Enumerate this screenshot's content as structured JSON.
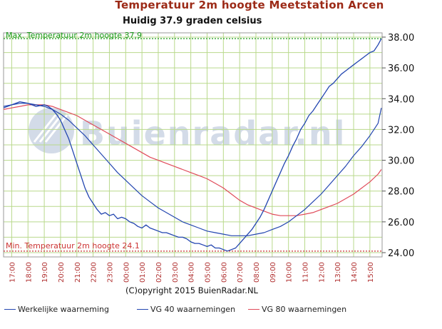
{
  "header": {
    "title": "Temperatuur 2m hoogte Meetstation Arcen",
    "subtitle": "Huidig 37.9 graden celsius"
  },
  "footer": {
    "copyright": "(C)opyright 2015 BuienRadar.NL"
  },
  "colors": {
    "actual": "#2346b0",
    "vg40": "#2346b0",
    "vg80": "#e04b5a",
    "max_line": "#1a9a1a",
    "min_line": "#cc3333",
    "grid": "#b9d98c",
    "watermark": "#d3dbe8",
    "title": "#9c2a17"
  },
  "chart_data": {
    "type": "line",
    "title": "Temperatuur 2m hoogte Meetstation Arcen",
    "subtitle": "Huidig 37.9 graden celsius",
    "watermark": "Buienradar.nl",
    "x_tick_labels": [
      "17:00",
      "18:00",
      "19:00",
      "20:00",
      "21:00",
      "22:00",
      "23:00",
      "00:00",
      "01:00",
      "02:00",
      "03:00",
      "04:00",
      "05:00",
      "06:00",
      "07:00",
      "08:00",
      "09:00",
      "10:00",
      "11:00",
      "12:00",
      "13:00",
      "14:00",
      "15:00"
    ],
    "xlim": [
      16.5,
      39.75
    ],
    "ylim": [
      24,
      38
    ],
    "y_ticks": [
      24,
      26,
      28,
      30,
      32,
      34,
      36,
      38
    ],
    "y_tick_labels": [
      "24.00",
      "26.00",
      "28.00",
      "30.00",
      "32.00",
      "34.00",
      "36.00",
      "38.00"
    ],
    "grid": true,
    "legend_position": "bottom",
    "reference_lines": [
      {
        "label": "Max. Temperatuur 2m hoogte 37.9",
        "value": 37.9,
        "color": "#1a9a1a"
      },
      {
        "label": "Min. Temperatuur 2m hoogte 24.1",
        "value": 24.1,
        "color": "#cc3333"
      }
    ],
    "series": [
      {
        "name": "Werkelijke waarneming",
        "color": "#2346b0",
        "x": [
          16.5,
          17.0,
          17.5,
          18.0,
          18.5,
          19.0,
          19.25,
          19.5,
          19.75,
          20.0,
          20.25,
          20.5,
          20.75,
          21.0,
          21.25,
          21.5,
          21.75,
          22.0,
          22.25,
          22.5,
          22.75,
          23.0,
          23.25,
          23.5,
          23.75,
          24.0,
          24.25,
          24.5,
          24.75,
          25.0,
          25.25,
          25.5,
          25.75,
          26.0,
          26.25,
          26.5,
          26.75,
          27.0,
          27.25,
          27.5,
          27.75,
          28.0,
          28.25,
          28.5,
          28.75,
          29.0,
          29.25,
          29.5,
          29.75,
          30.0,
          30.25,
          30.5,
          30.75,
          31.0,
          31.25,
          31.5,
          31.75,
          32.0,
          32.25,
          32.5,
          32.75,
          33.0,
          33.25,
          33.5,
          33.75,
          34.0,
          34.25,
          34.5,
          34.75,
          35.0,
          35.25,
          35.5,
          35.75,
          36.0,
          36.25,
          36.5,
          36.75,
          37.0,
          37.25,
          37.5,
          37.75,
          38.0,
          38.25,
          38.5,
          38.75,
          39.0,
          39.25,
          39.5,
          39.7
        ],
        "values": [
          33.4,
          33.6,
          33.8,
          33.7,
          33.5,
          33.6,
          33.5,
          33.3,
          33.0,
          32.6,
          32.0,
          31.4,
          30.6,
          29.8,
          29.0,
          28.2,
          27.6,
          27.2,
          26.8,
          26.5,
          26.6,
          26.4,
          26.5,
          26.2,
          26.3,
          26.2,
          26.0,
          25.9,
          25.7,
          25.6,
          25.8,
          25.6,
          25.5,
          25.4,
          25.3,
          25.3,
          25.2,
          25.1,
          25.0,
          25.0,
          24.9,
          24.7,
          24.6,
          24.6,
          24.5,
          24.4,
          24.5,
          24.3,
          24.3,
          24.2,
          24.1,
          24.2,
          24.3,
          24.6,
          24.9,
          25.2,
          25.5,
          25.9,
          26.3,
          26.8,
          27.4,
          28.0,
          28.6,
          29.2,
          29.8,
          30.3,
          30.9,
          31.4,
          32.0,
          32.4,
          32.9,
          33.2,
          33.6,
          34.0,
          34.4,
          34.8,
          35.0,
          35.3,
          35.6,
          35.8,
          36.0,
          36.2,
          36.4,
          36.6,
          36.8,
          37.0,
          37.1,
          37.5,
          37.9
        ]
      },
      {
        "name": "VG 40 waarnemingen",
        "color": "#2346b0",
        "x": [
          16.5,
          17.0,
          17.5,
          18.0,
          18.5,
          19.0,
          19.5,
          20.0,
          20.5,
          21.0,
          21.5,
          22.0,
          22.5,
          23.0,
          23.5,
          24.0,
          24.5,
          25.0,
          25.5,
          26.0,
          26.5,
          27.0,
          27.5,
          28.0,
          28.5,
          29.0,
          29.5,
          30.0,
          30.5,
          31.0,
          31.5,
          32.0,
          32.5,
          33.0,
          33.5,
          34.0,
          34.5,
          35.0,
          35.5,
          36.0,
          36.5,
          37.0,
          37.5,
          38.0,
          38.5,
          39.0,
          39.5,
          39.7
        ],
        "values": [
          33.5,
          33.6,
          33.7,
          33.7,
          33.6,
          33.5,
          33.3,
          33.0,
          32.6,
          32.1,
          31.6,
          31.0,
          30.4,
          29.8,
          29.2,
          28.7,
          28.2,
          27.7,
          27.3,
          26.9,
          26.6,
          26.3,
          26.0,
          25.8,
          25.6,
          25.4,
          25.3,
          25.2,
          25.1,
          25.1,
          25.1,
          25.2,
          25.3,
          25.5,
          25.7,
          26.0,
          26.4,
          26.8,
          27.3,
          27.8,
          28.4,
          29.0,
          29.6,
          30.3,
          30.9,
          31.6,
          32.4,
          33.4
        ]
      },
      {
        "name": "VG 80 waarnemingen",
        "color": "#e04b5a",
        "x": [
          16.5,
          17.0,
          17.5,
          18.0,
          18.5,
          19.0,
          19.5,
          20.0,
          20.5,
          21.0,
          21.5,
          22.0,
          22.5,
          23.0,
          23.5,
          24.0,
          24.5,
          25.0,
          25.5,
          26.0,
          26.5,
          27.0,
          27.5,
          28.0,
          28.5,
          29.0,
          29.5,
          30.0,
          30.5,
          31.0,
          31.5,
          32.0,
          32.5,
          33.0,
          33.5,
          34.0,
          34.5,
          35.0,
          35.5,
          36.0,
          36.5,
          37.0,
          37.5,
          38.0,
          38.5,
          39.0,
          39.5,
          39.7
        ],
        "values": [
          33.3,
          33.4,
          33.5,
          33.6,
          33.6,
          33.6,
          33.5,
          33.3,
          33.1,
          32.9,
          32.6,
          32.3,
          32.0,
          31.7,
          31.4,
          31.1,
          30.8,
          30.5,
          30.2,
          30.0,
          29.8,
          29.6,
          29.4,
          29.2,
          29.0,
          28.8,
          28.5,
          28.2,
          27.8,
          27.4,
          27.1,
          26.9,
          26.7,
          26.5,
          26.4,
          26.4,
          26.4,
          26.5,
          26.6,
          26.8,
          27.0,
          27.2,
          27.5,
          27.8,
          28.2,
          28.6,
          29.1,
          29.4
        ]
      }
    ]
  }
}
